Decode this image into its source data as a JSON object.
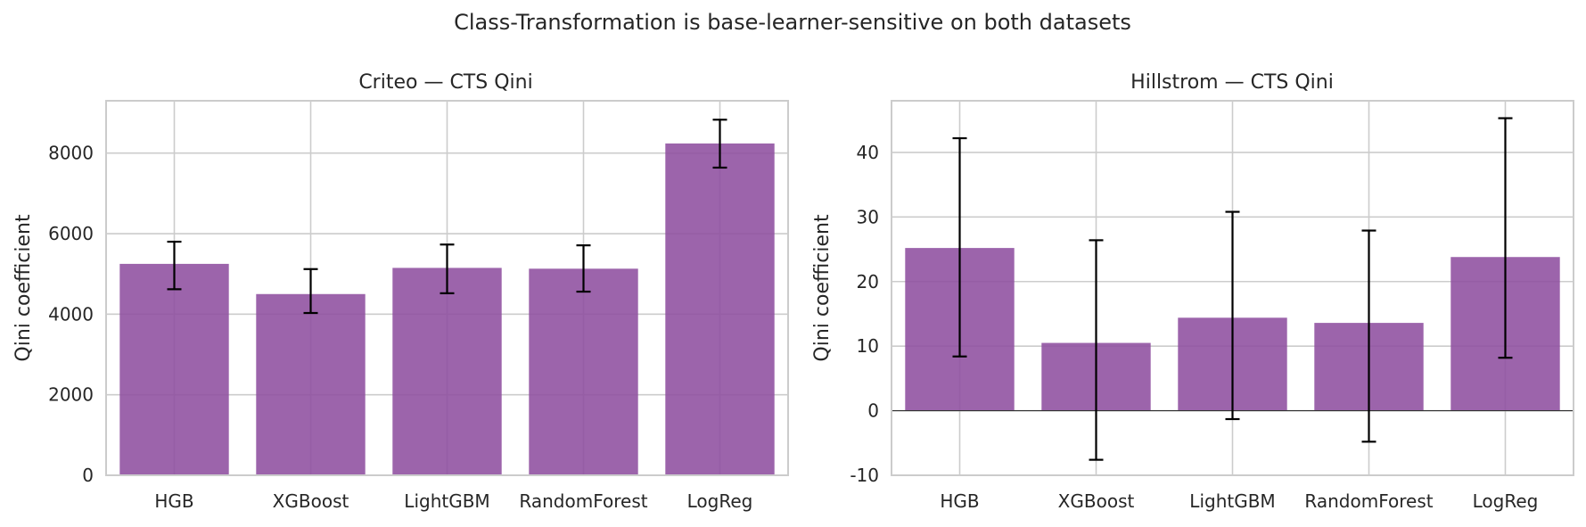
{
  "figure": {
    "title": "Class-Transformation is base-learner-sensitive on both datasets"
  },
  "colors": {
    "bar": "#8e4f9f",
    "grid": "#cccccc",
    "error_bar": "#000000"
  },
  "chart_data": [
    {
      "type": "bar",
      "title": "Criteo — CTS Qini",
      "ylabel": "Qini coefficient",
      "xlabel": "",
      "categories": [
        "HGB",
        "XGBoost",
        "LightGBM",
        "RandomForest",
        "LogReg"
      ],
      "values": [
        5250,
        4500,
        5150,
        5130,
        8240
      ],
      "error_low": [
        4620,
        4030,
        4520,
        4560,
        7640
      ],
      "error_high": [
        5800,
        5120,
        5730,
        5710,
        8830
      ],
      "ylim": [
        0,
        9300
      ],
      "yticks": [
        0,
        2000,
        4000,
        6000,
        8000
      ],
      "grid": true,
      "zero_line": false
    },
    {
      "type": "bar",
      "title": "Hillstrom — CTS Qini",
      "ylabel": "Qini coefficient",
      "xlabel": "",
      "categories": [
        "HGB",
        "XGBoost",
        "LightGBM",
        "RandomForest",
        "LogReg"
      ],
      "values": [
        25.2,
        10.5,
        14.4,
        13.6,
        23.8
      ],
      "error_low": [
        8.4,
        -7.6,
        -1.3,
        -4.8,
        8.2
      ],
      "error_high": [
        42.2,
        26.4,
        30.8,
        27.9,
        45.3
      ],
      "ylim": [
        -10,
        48
      ],
      "yticks": [
        -10,
        0,
        10,
        20,
        30,
        40
      ],
      "grid": true,
      "zero_line": true
    }
  ]
}
